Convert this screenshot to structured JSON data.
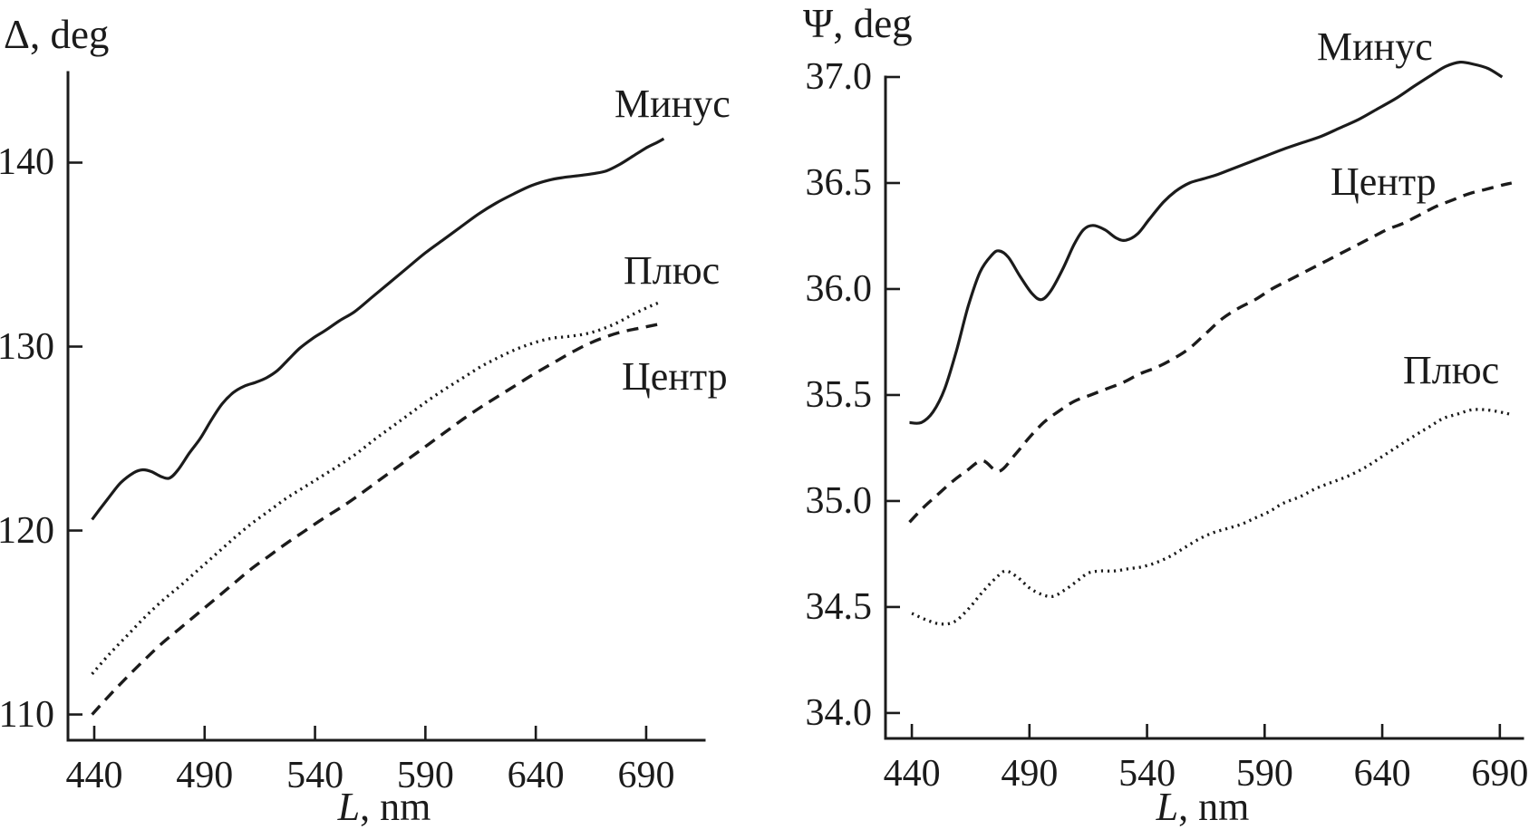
{
  "figure": {
    "background": "#ffffff",
    "line_color": "#1b1b1b"
  },
  "chart_data": [
    {
      "type": "line",
      "title": "Δ, deg",
      "xlabel": "L, nm",
      "xlabel_italic": "L",
      "xlabel_rest": ", nm",
      "ylabel": "Δ, deg",
      "grid": false,
      "legend_position": "labels-on-plot",
      "xlim": [
        428.1,
        716.3
      ],
      "ylim": [
        108.6,
        144.9
      ],
      "x_tick_labels": [
        "440",
        "490",
        "540",
        "590",
        "640",
        "690"
      ],
      "y_tick_labels": [
        "110",
        "120",
        "130",
        "140"
      ],
      "series": [
        {
          "name": "Минус",
          "style": "solid",
          "points": [
            [
              439,
              120.6
            ],
            [
              446,
              121.7
            ],
            [
              452,
              122.6
            ],
            [
              458,
              123.15
            ],
            [
              462,
              123.3
            ],
            [
              466,
              123.2
            ],
            [
              470,
              122.95
            ],
            [
              474,
              122.85
            ],
            [
              478,
              123.3
            ],
            [
              483,
              124.2
            ],
            [
              488,
              125.0
            ],
            [
              493,
              126.0
            ],
            [
              498,
              126.9
            ],
            [
              503,
              127.5
            ],
            [
              508,
              127.85
            ],
            [
              513,
              128.05
            ],
            [
              518,
              128.3
            ],
            [
              523,
              128.7
            ],
            [
              528,
              129.3
            ],
            [
              533,
              129.9
            ],
            [
              539,
              130.45
            ],
            [
              545,
              130.9
            ],
            [
              551,
              131.4
            ],
            [
              558,
              131.9
            ],
            [
              566,
              132.7
            ],
            [
              574,
              133.5
            ],
            [
              582,
              134.3
            ],
            [
              590,
              135.1
            ],
            [
              598,
              135.8
            ],
            [
              606,
              136.5
            ],
            [
              614,
              137.2
            ],
            [
              622,
              137.8
            ],
            [
              630,
              138.3
            ],
            [
              638,
              138.75
            ],
            [
              646,
              139.05
            ],
            [
              653,
              139.2
            ],
            [
              660,
              139.3
            ],
            [
              666,
              139.4
            ],
            [
              672,
              139.55
            ],
            [
              678,
              139.9
            ],
            [
              684,
              140.35
            ],
            [
              690,
              140.8
            ],
            [
              695,
              141.1
            ],
            [
              698,
              141.3
            ]
          ]
        },
        {
          "name": "Плюс",
          "style": "dotted",
          "points": [
            [
              439,
              112.2
            ],
            [
              447,
              113.3
            ],
            [
              455,
              114.3
            ],
            [
              463,
              115.3
            ],
            [
              471,
              116.2
            ],
            [
              479,
              117.0
            ],
            [
              487,
              117.85
            ],
            [
              495,
              118.7
            ],
            [
              503,
              119.55
            ],
            [
              511,
              120.35
            ],
            [
              519,
              121.05
            ],
            [
              527,
              121.75
            ],
            [
              535,
              122.35
            ],
            [
              543,
              122.95
            ],
            [
              551,
              123.55
            ],
            [
              559,
              124.2
            ],
            [
              567,
              124.95
            ],
            [
              575,
              125.65
            ],
            [
              583,
              126.35
            ],
            [
              591,
              127.05
            ],
            [
              599,
              127.7
            ],
            [
              607,
              128.3
            ],
            [
              615,
              128.9
            ],
            [
              623,
              129.4
            ],
            [
              631,
              129.85
            ],
            [
              639,
              130.2
            ],
            [
              647,
              130.45
            ],
            [
              655,
              130.55
            ],
            [
              663,
              130.7
            ],
            [
              670,
              130.95
            ],
            [
              677,
              131.3
            ],
            [
              684,
              131.75
            ],
            [
              691,
              132.15
            ],
            [
              696,
              132.4
            ]
          ]
        },
        {
          "name": "Центр",
          "style": "dashed",
          "points": [
            [
              439,
              110.0
            ],
            [
              447,
              111.05
            ],
            [
              455,
              112.05
            ],
            [
              463,
              113.0
            ],
            [
              471,
              113.9
            ],
            [
              479,
              114.7
            ],
            [
              487,
              115.5
            ],
            [
              495,
              116.3
            ],
            [
              503,
              117.1
            ],
            [
              511,
              117.9
            ],
            [
              519,
              118.6
            ],
            [
              527,
              119.3
            ],
            [
              535,
              119.95
            ],
            [
              543,
              120.6
            ],
            [
              551,
              121.2
            ],
            [
              559,
              121.85
            ],
            [
              567,
              122.55
            ],
            [
              575,
              123.25
            ],
            [
              583,
              123.95
            ],
            [
              591,
              124.65
            ],
            [
              599,
              125.35
            ],
            [
              607,
              126.05
            ],
            [
              615,
              126.7
            ],
            [
              623,
              127.3
            ],
            [
              631,
              127.9
            ],
            [
              639,
              128.5
            ],
            [
              647,
              129.05
            ],
            [
              655,
              129.6
            ],
            [
              663,
              130.1
            ],
            [
              671,
              130.5
            ],
            [
              679,
              130.8
            ],
            [
              687,
              131.0
            ],
            [
              695,
              131.2
            ]
          ]
        }
      ]
    },
    {
      "type": "line",
      "title": "Ψ, deg",
      "xlabel": "L, nm",
      "xlabel_italic": "L",
      "xlabel_rest": ", nm",
      "ylabel": "Ψ, deg",
      "grid": false,
      "legend_position": "labels-on-plot",
      "xlim": [
        428.8,
        699.7
      ],
      "ylim": [
        33.88,
        37.0
      ],
      "x_tick_labels": [
        "440",
        "490",
        "540",
        "590",
        "640",
        "690"
      ],
      "y_tick_labels": [
        "34.0",
        "34.5",
        "35.0",
        "35.5",
        "36.0",
        "36.5",
        "37.0"
      ],
      "series": [
        {
          "name": "Минус",
          "style": "solid",
          "points": [
            [
              439,
              35.37
            ],
            [
              444,
              35.37
            ],
            [
              449,
              35.42
            ],
            [
              454,
              35.53
            ],
            [
              459,
              35.71
            ],
            [
              464,
              35.92
            ],
            [
              469,
              36.08
            ],
            [
              474,
              36.16
            ],
            [
              477,
              36.18
            ],
            [
              481,
              36.15
            ],
            [
              486,
              36.06
            ],
            [
              491,
              35.98
            ],
            [
              495,
              35.95
            ],
            [
              499,
              35.99
            ],
            [
              504,
              36.09
            ],
            [
              509,
              36.21
            ],
            [
              513,
              36.28
            ],
            [
              517,
              36.3
            ],
            [
              522,
              36.28
            ],
            [
              527,
              36.24
            ],
            [
              531,
              36.23
            ],
            [
              536,
              36.26
            ],
            [
              541,
              36.33
            ],
            [
              547,
              36.41
            ],
            [
              552,
              36.46
            ],
            [
              558,
              36.5
            ],
            [
              564,
              36.52
            ],
            [
              570,
              36.54
            ],
            [
              577,
              36.57
            ],
            [
              584,
              36.6
            ],
            [
              591,
              36.63
            ],
            [
              598,
              36.66
            ],
            [
              606,
              36.69
            ],
            [
              614,
              36.72
            ],
            [
              622,
              36.76
            ],
            [
              630,
              36.8
            ],
            [
              638,
              36.85
            ],
            [
              646,
              36.9
            ],
            [
              654,
              36.96
            ],
            [
              661,
              37.01
            ],
            [
              667,
              37.05
            ],
            [
              673,
              37.07
            ],
            [
              679,
              37.06
            ],
            [
              685,
              37.04
            ],
            [
              691,
              37.0
            ]
          ]
        },
        {
          "name": "Центр",
          "style": "dashed",
          "points": [
            [
              439,
              34.9
            ],
            [
              445,
              34.97
            ],
            [
              451,
              35.03
            ],
            [
              457,
              35.09
            ],
            [
              463,
              35.14
            ],
            [
              470,
              35.19
            ],
            [
              477,
              35.14
            ],
            [
              484,
              35.22
            ],
            [
              490,
              35.3
            ],
            [
              496,
              35.37
            ],
            [
              502,
              35.42
            ],
            [
              509,
              35.47
            ],
            [
              516,
              35.5
            ],
            [
              523,
              35.53
            ],
            [
              530,
              35.56
            ],
            [
              537,
              35.6
            ],
            [
              544,
              35.63
            ],
            [
              551,
              35.67
            ],
            [
              558,
              35.72
            ],
            [
              565,
              35.79
            ],
            [
              572,
              35.86
            ],
            [
              579,
              35.91
            ],
            [
              586,
              35.95
            ],
            [
              593,
              36.0
            ],
            [
              600,
              36.04
            ],
            [
              607,
              36.08
            ],
            [
              614,
              36.12
            ],
            [
              621,
              36.16
            ],
            [
              628,
              36.2
            ],
            [
              635,
              36.24
            ],
            [
              642,
              36.28
            ],
            [
              649,
              36.31
            ],
            [
              656,
              36.35
            ],
            [
              663,
              36.39
            ],
            [
              670,
              36.42
            ],
            [
              677,
              36.45
            ],
            [
              684,
              36.47
            ],
            [
              691,
              36.49
            ],
            [
              695,
              36.5
            ]
          ]
        },
        {
          "name": "Плюс",
          "style": "dotted",
          "points": [
            [
              440,
              34.47
            ],
            [
              446,
              34.44
            ],
            [
              452,
              34.42
            ],
            [
              458,
              34.43
            ],
            [
              464,
              34.49
            ],
            [
              470,
              34.57
            ],
            [
              476,
              34.64
            ],
            [
              480,
              34.67
            ],
            [
              485,
              34.64
            ],
            [
              490,
              34.59
            ],
            [
              495,
              34.56
            ],
            [
              500,
              34.55
            ],
            [
              505,
              34.58
            ],
            [
              510,
              34.62
            ],
            [
              515,
              34.66
            ],
            [
              520,
              34.67
            ],
            [
              526,
              34.67
            ],
            [
              532,
              34.68
            ],
            [
              538,
              34.69
            ],
            [
              544,
              34.71
            ],
            [
              550,
              34.74
            ],
            [
              556,
              34.78
            ],
            [
              562,
              34.82
            ],
            [
              568,
              34.85
            ],
            [
              574,
              34.87
            ],
            [
              580,
              34.89
            ],
            [
              586,
              34.92
            ],
            [
              592,
              34.95
            ],
            [
              598,
              34.99
            ],
            [
              605,
              35.02
            ],
            [
              612,
              35.06
            ],
            [
              619,
              35.09
            ],
            [
              626,
              35.12
            ],
            [
              633,
              35.16
            ],
            [
              640,
              35.21
            ],
            [
              647,
              35.26
            ],
            [
              654,
              35.31
            ],
            [
              660,
              35.35
            ],
            [
              666,
              35.39
            ],
            [
              672,
              35.41
            ],
            [
              678,
              35.43
            ],
            [
              684,
              35.43
            ],
            [
              690,
              35.42
            ],
            [
              694,
              35.41
            ]
          ]
        }
      ]
    }
  ]
}
